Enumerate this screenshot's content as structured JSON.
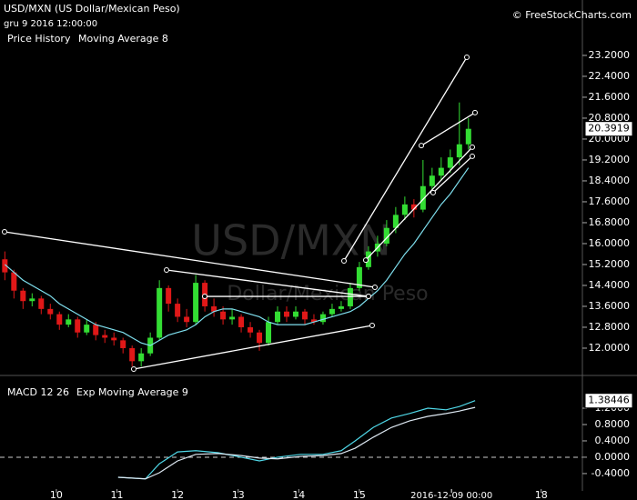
{
  "header": {
    "title": "USD/MXN (US Dollar/Mexican Peso)",
    "timestamp": "gru 9 2016 12:00:00",
    "copyright": "© FreeStockCharts.com"
  },
  "chart_data": [
    {
      "type": "candlestick",
      "watermark": "USD/MXN",
      "watermark_subtitle": "Dollar/Mexican Peso",
      "series": [
        {
          "name": "Price History",
          "color": "#33dd33",
          "down_color": "#e01818"
        },
        {
          "name": "Moving Average 8",
          "color": "#7fe0ef",
          "values": [
            15.2,
            14.9,
            14.6,
            14.4,
            14.2,
            14.0,
            13.7,
            13.5,
            13.3,
            13.1,
            12.9,
            12.8,
            12.7,
            12.6,
            12.4,
            12.2,
            12.1,
            12.3,
            12.5,
            12.6,
            12.7,
            12.9,
            13.2,
            13.4,
            13.5,
            13.5,
            13.4,
            13.3,
            13.2,
            13.0,
            12.9,
            12.9,
            12.9,
            12.9,
            13.0,
            13.1,
            13.2,
            13.3,
            13.4,
            13.6,
            13.9,
            14.2,
            14.6,
            15.1,
            15.6,
            16.0,
            16.5,
            17.0,
            17.5,
            17.9,
            18.4,
            18.9
          ]
        }
      ],
      "x": [
        9.15,
        9.3,
        9.45,
        9.6,
        9.75,
        9.9,
        10.05,
        10.2,
        10.35,
        10.5,
        10.65,
        10.8,
        10.95,
        11.1,
        11.25,
        11.4,
        11.55,
        11.7,
        11.85,
        12.0,
        12.15,
        12.3,
        12.45,
        12.6,
        12.75,
        12.9,
        13.05,
        13.2,
        13.35,
        13.5,
        13.65,
        13.8,
        13.95,
        14.1,
        14.25,
        14.4,
        14.55,
        14.7,
        14.85,
        15.0,
        15.15,
        15.3,
        15.45,
        15.6,
        15.75,
        15.9,
        16.05,
        16.2,
        16.35,
        16.5,
        16.65,
        16.8
      ],
      "open": [
        15.4,
        14.9,
        14.2,
        13.8,
        13.9,
        13.5,
        13.3,
        12.9,
        13.1,
        12.6,
        12.9,
        12.5,
        12.4,
        12.3,
        12.0,
        11.5,
        11.8,
        12.4,
        14.3,
        13.7,
        13.2,
        13.0,
        14.5,
        13.6,
        13.4,
        13.1,
        13.2,
        12.8,
        12.6,
        12.2,
        13.0,
        13.4,
        13.2,
        13.4,
        13.1,
        13.0,
        13.3,
        13.5,
        13.6,
        14.3,
        15.1,
        15.7,
        16.0,
        16.6,
        17.1,
        17.5,
        17.3,
        18.2,
        18.6,
        18.9,
        19.3,
        19.8
      ],
      "high": [
        15.7,
        15.0,
        14.3,
        14.1,
        14.0,
        13.7,
        13.4,
        13.3,
        13.2,
        13.1,
        13.0,
        12.7,
        12.6,
        12.4,
        12.1,
        12.0,
        12.6,
        14.6,
        14.4,
        13.9,
        13.5,
        14.8,
        14.6,
        13.9,
        13.6,
        13.5,
        13.3,
        13.0,
        12.7,
        13.2,
        13.6,
        13.6,
        13.6,
        13.5,
        13.3,
        13.4,
        13.7,
        13.8,
        14.5,
        15.3,
        15.9,
        16.3,
        16.9,
        17.4,
        17.8,
        17.7,
        19.2,
        18.9,
        19.3,
        19.6,
        21.4,
        20.8
      ],
      "low": [
        14.6,
        13.9,
        13.5,
        13.6,
        13.3,
        13.1,
        12.7,
        12.8,
        12.4,
        12.5,
        12.3,
        12.2,
        12.1,
        11.8,
        11.3,
        11.3,
        11.7,
        12.3,
        13.4,
        13.0,
        12.8,
        12.9,
        13.4,
        13.2,
        12.9,
        12.9,
        12.6,
        12.4,
        11.9,
        12.1,
        12.9,
        13.0,
        13.1,
        12.9,
        12.9,
        12.9,
        13.2,
        13.4,
        13.5,
        14.2,
        15.0,
        15.5,
        15.9,
        16.4,
        16.9,
        17.0,
        17.2,
        17.9,
        18.4,
        18.7,
        19.0,
        19.6
      ],
      "close": [
        14.9,
        14.2,
        13.8,
        13.9,
        13.5,
        13.3,
        12.9,
        13.1,
        12.6,
        12.9,
        12.5,
        12.4,
        12.3,
        12.0,
        11.5,
        11.8,
        12.4,
        14.3,
        13.7,
        13.2,
        13.0,
        14.5,
        13.6,
        13.4,
        13.1,
        13.2,
        12.8,
        12.6,
        12.2,
        13.0,
        13.4,
        13.2,
        13.4,
        13.1,
        13.0,
        13.3,
        13.5,
        13.6,
        14.3,
        15.1,
        15.7,
        16.0,
        16.6,
        17.1,
        17.5,
        17.3,
        18.2,
        18.6,
        18.9,
        19.3,
        19.8,
        20.3919
      ],
      "trendlines": [
        [
          9.145,
          16.45,
          15.256,
          14.33
        ],
        [
          11.818,
          14.99,
          15.151,
          13.98
        ],
        [
          11.277,
          11.2,
          15.211,
          12.87
        ],
        [
          12.448,
          13.98,
          15.151,
          13.98
        ],
        [
          14.746,
          15.34,
          16.773,
          23.13
        ],
        [
          16.022,
          19.75,
          16.908,
          21.01
        ],
        [
          15.106,
          15.37,
          16.863,
          19.69
        ],
        [
          16.217,
          17.95,
          16.863,
          19.34
        ]
      ],
      "xlim": [
        9.07,
        18.68
      ],
      "xticks": [
        10,
        11,
        12,
        13,
        14,
        15,
        18
      ],
      "cursor": {
        "value": 16.52,
        "label": "2016-12-09 00:00"
      },
      "ylim": [
        11.06,
        25.32
      ],
      "yticks": [
        {
          "value": 23.2,
          "label": "23.2000"
        },
        {
          "value": 22.4,
          "label": "22.4000"
        },
        {
          "value": 21.6,
          "label": "21.6000"
        },
        {
          "value": 20.8,
          "label": "20.8000"
        },
        {
          "value": 20.0,
          "label": "20.0000"
        },
        {
          "value": 19.2,
          "label": "19.2000"
        },
        {
          "value": 18.4,
          "label": "18.4000"
        },
        {
          "value": 17.6,
          "label": "17.6000"
        },
        {
          "value": 16.8,
          "label": "16.8000"
        },
        {
          "value": 16.0,
          "label": "16.0000"
        },
        {
          "value": 15.2,
          "label": "15.2000"
        },
        {
          "value": 14.4,
          "label": "14.4000"
        },
        {
          "value": 13.6,
          "label": "13.6000"
        },
        {
          "value": 12.8,
          "label": "12.8000"
        },
        {
          "value": 12.0,
          "label": "12.0000"
        }
      ]
    },
    {
      "type": "macd",
      "x": [
        11.02,
        11.47,
        11.7,
        12.0,
        12.3,
        12.67,
        13.05,
        13.35,
        13.65,
        14.03,
        14.4,
        14.7,
        14.93,
        15.23,
        15.53,
        15.83,
        16.13,
        16.43,
        16.65,
        16.91
      ],
      "series": [
        {
          "name": "MACD 12 26",
          "color": "#4fd8e8",
          "values": [
            -0.49,
            -0.53,
            -0.16,
            0.13,
            0.16,
            0.11,
            0.0,
            -0.09,
            0.0,
            0.07,
            0.07,
            0.16,
            0.4,
            0.73,
            0.96,
            1.07,
            1.2,
            1.16,
            1.24,
            1.38446
          ]
        },
        {
          "name": "Exp Moving Average 9",
          "color": "#dde8f2",
          "values": [
            -0.49,
            -0.53,
            -0.38,
            -0.09,
            0.07,
            0.09,
            0.04,
            -0.02,
            -0.04,
            0.02,
            0.04,
            0.09,
            0.22,
            0.49,
            0.73,
            0.89,
            1.0,
            1.07,
            1.13,
            1.22
          ]
        }
      ],
      "ylim": [
        -0.78,
        1.89
      ],
      "yticks": [
        {
          "value": 1.2,
          "label": "1.2000"
        },
        {
          "value": 0.8,
          "label": "0.8000"
        },
        {
          "value": 0.4,
          "label": "0.4000"
        },
        {
          "value": 0.0,
          "label": "0.0000"
        },
        {
          "value": -0.4,
          "label": "-0.4000"
        }
      ]
    }
  ]
}
